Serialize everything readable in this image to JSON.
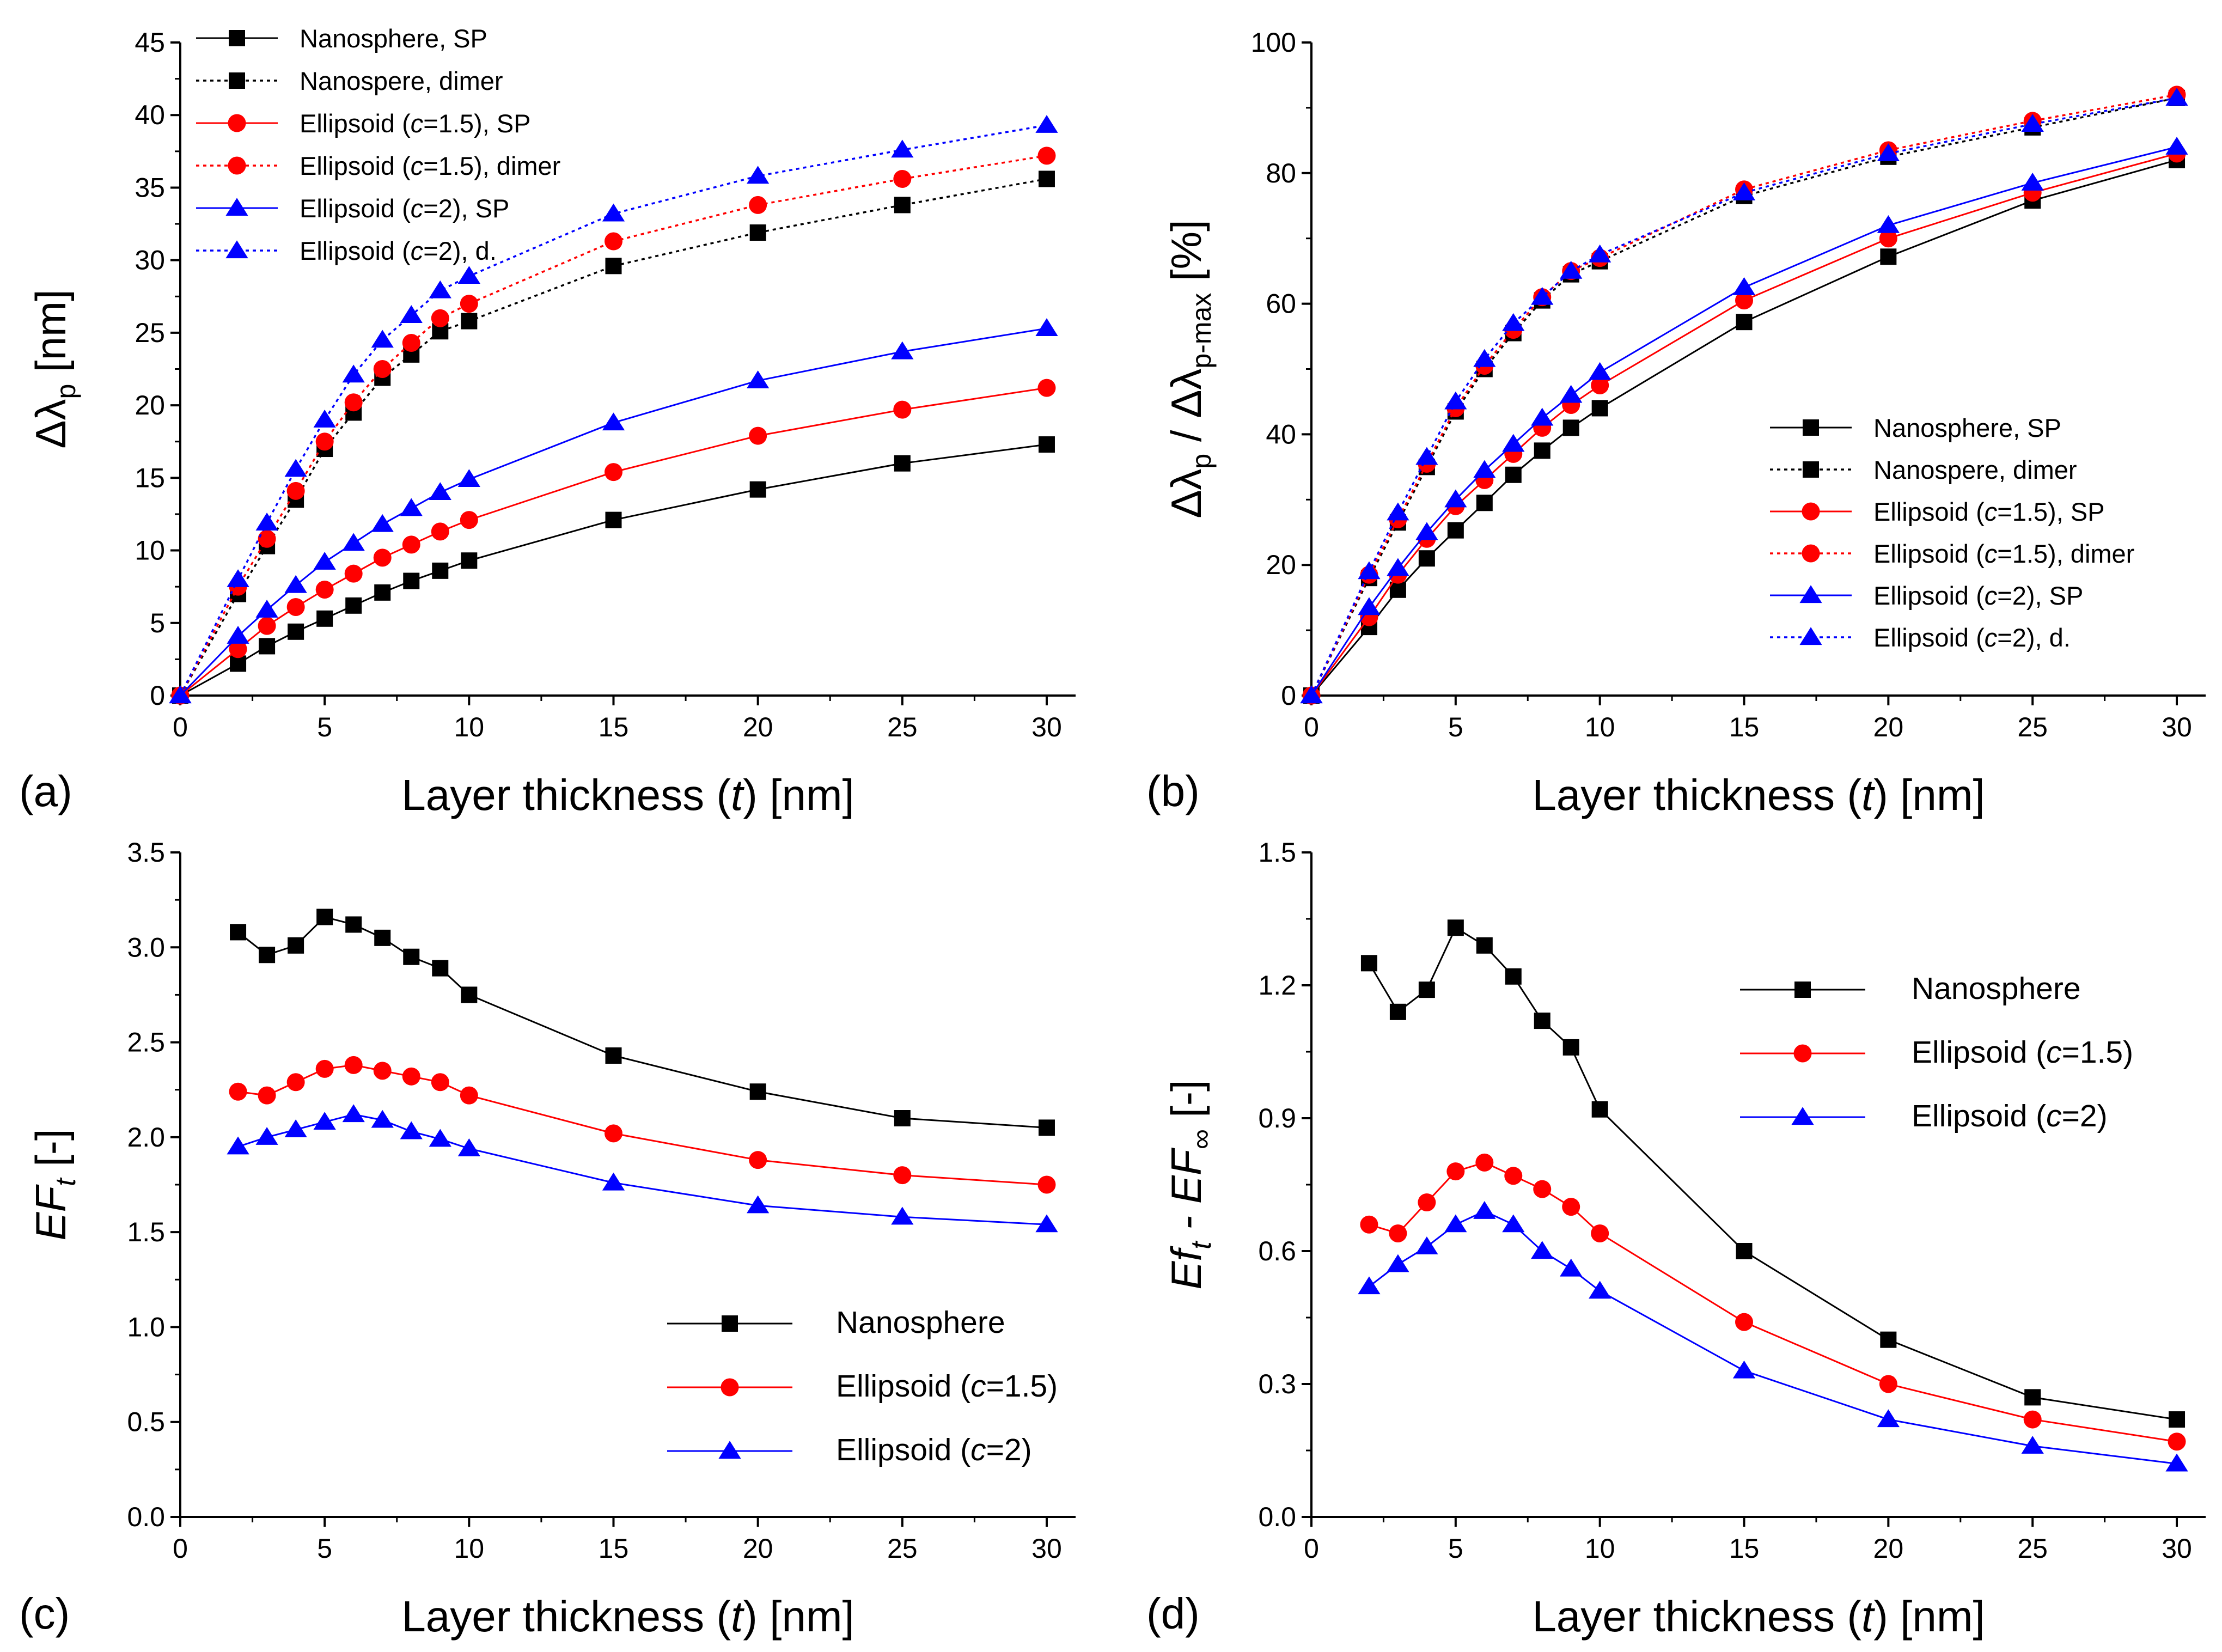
{
  "chart_data": [
    {
      "panel": "(a)",
      "type": "line",
      "xlabel_parts": [
        "Layer thickness (",
        "t",
        ") [nm]"
      ],
      "ylabel": "Δλp [nm]",
      "ylabel_parts": [
        "Δλ",
        "p",
        " [nm]"
      ],
      "xlim": [
        0,
        31
      ],
      "ylim": [
        0,
        45
      ],
      "xticks": [
        0,
        5,
        10,
        15,
        20,
        25,
        30
      ],
      "yticks": [
        0,
        5,
        10,
        15,
        20,
        25,
        30,
        35,
        40,
        45
      ],
      "legend_position": "top-left",
      "x": [
        0,
        2,
        3,
        4,
        5,
        6,
        7,
        8,
        9,
        10,
        15,
        20,
        25,
        30
      ],
      "series": [
        {
          "name": "Nanosphere, SP",
          "label_parts": [
            "Nanosphere, SP"
          ],
          "color": "#000000",
          "marker": "square",
          "dash": "solid",
          "values": [
            0,
            2.2,
            3.4,
            4.4,
            5.3,
            6.2,
            7.1,
            7.9,
            8.6,
            9.3,
            12.1,
            14.2,
            16.0,
            17.3
          ]
        },
        {
          "name": "Nanospere, dimer",
          "label_parts": [
            "Nanospere, dimer"
          ],
          "color": "#000000",
          "marker": "square",
          "dash": "dotted",
          "values": [
            0,
            7.0,
            10.3,
            13.5,
            17.0,
            19.5,
            21.9,
            23.5,
            25.1,
            25.8,
            29.6,
            31.9,
            33.8,
            35.6
          ]
        },
        {
          "name": "Ellipsoid (c=1.5), SP",
          "label_parts": [
            "Ellipsoid (",
            "c",
            "=1.5), SP"
          ],
          "color": "#ff0000",
          "marker": "circle",
          "dash": "solid",
          "values": [
            0,
            3.2,
            4.8,
            6.1,
            7.3,
            8.4,
            9.5,
            10.4,
            11.3,
            12.1,
            15.4,
            17.9,
            19.7,
            21.2
          ]
        },
        {
          "name": "Ellipsoid (c=1.5), dimer",
          "label_parts": [
            "Ellipsoid (",
            "c",
            "=1.5), dimer"
          ],
          "color": "#ff0000",
          "marker": "circle",
          "dash": "dotted",
          "values": [
            0,
            7.5,
            10.8,
            14.1,
            17.5,
            20.2,
            22.5,
            24.3,
            26.0,
            27.0,
            31.3,
            33.8,
            35.6,
            37.2
          ]
        },
        {
          "name": "Ellipsoid (c=2), SP",
          "label_parts": [
            "Ellipsoid (",
            "c",
            "=2), SP"
          ],
          "color": "#0000ff",
          "marker": "triangle",
          "dash": "solid",
          "values": [
            0,
            4.1,
            5.9,
            7.6,
            9.2,
            10.5,
            11.8,
            12.9,
            14.0,
            14.9,
            18.8,
            21.7,
            23.7,
            25.3
          ]
        },
        {
          "name": "Ellipsoid (c=2), d.",
          "label_parts": [
            "Ellipsoid (",
            "c",
            "=2), d."
          ],
          "color": "#0000ff",
          "marker": "triangle",
          "dash": "dotted",
          "values": [
            0,
            8.0,
            11.9,
            15.6,
            19.0,
            22.1,
            24.5,
            26.2,
            27.9,
            28.9,
            33.2,
            35.8,
            37.6,
            39.3
          ]
        }
      ]
    },
    {
      "panel": "(b)",
      "type": "line",
      "xlabel_parts": [
        "Layer thickness (",
        "t",
        ") [nm]"
      ],
      "ylabel": "Δλp / Δλp-max [%]",
      "ylabel_parts": [
        "Δλ",
        "p",
        " / Δλ",
        "p-max",
        " [%]"
      ],
      "xlim": [
        0,
        31
      ],
      "ylim": [
        0,
        100
      ],
      "xticks": [
        0,
        5,
        10,
        15,
        20,
        25,
        30
      ],
      "yticks": [
        0,
        20,
        40,
        60,
        80,
        100
      ],
      "legend_position": "center-right",
      "x": [
        0,
        2,
        3,
        4,
        5,
        6,
        7,
        8,
        9,
        10,
        15,
        20,
        25,
        30
      ],
      "series": [
        {
          "name": "Nanosphere, SP",
          "label_parts": [
            "Nanosphere, SP"
          ],
          "color": "#000000",
          "marker": "square",
          "dash": "solid",
          "values": [
            0,
            10.5,
            16.2,
            21.0,
            25.3,
            29.5,
            33.8,
            37.5,
            41.0,
            44.0,
            57.2,
            67.2,
            75.8,
            82.0
          ]
        },
        {
          "name": "Nanospere, dimer",
          "label_parts": [
            "Nanospere, dimer"
          ],
          "color": "#000000",
          "marker": "square",
          "dash": "dotted",
          "values": [
            0,
            18.0,
            26.5,
            35.0,
            43.5,
            50.0,
            55.5,
            60.5,
            64.5,
            66.5,
            76.5,
            82.5,
            87.0,
            91.5
          ]
        },
        {
          "name": "Ellipsoid (c=1.5), SP",
          "label_parts": [
            "Ellipsoid (",
            "c",
            "=1.5), SP"
          ],
          "color": "#ff0000",
          "marker": "circle",
          "dash": "solid",
          "values": [
            0,
            12.0,
            18.5,
            24.0,
            29.0,
            33.0,
            37.0,
            41.0,
            44.5,
            47.5,
            60.5,
            70.0,
            77.0,
            83.0
          ]
        },
        {
          "name": "Ellipsoid (c=1.5), dimer",
          "label_parts": [
            "Ellipsoid (",
            "c",
            "=1.5), dimer"
          ],
          "color": "#ff0000",
          "marker": "circle",
          "dash": "dotted",
          "values": [
            0,
            18.5,
            27.0,
            35.5,
            44.0,
            50.5,
            56.0,
            61.0,
            65.0,
            67.0,
            77.5,
            83.5,
            88.0,
            92.0
          ]
        },
        {
          "name": "Ellipsoid (c=2), SP",
          "label_parts": [
            "Ellipsoid (",
            "c",
            "=2), SP"
          ],
          "color": "#0000ff",
          "marker": "triangle",
          "dash": "solid",
          "values": [
            0,
            13.5,
            19.5,
            25.0,
            30.0,
            34.5,
            38.5,
            42.5,
            46.0,
            49.5,
            62.5,
            72.0,
            78.5,
            84.0
          ]
        },
        {
          "name": "Ellipsoid (c=2), d.",
          "label_parts": [
            "Ellipsoid (",
            "c",
            "=2), d."
          ],
          "color": "#0000ff",
          "marker": "triangle",
          "dash": "dotted",
          "values": [
            0,
            19.0,
            28.0,
            36.5,
            45.0,
            51.5,
            57.0,
            61.0,
            65.0,
            67.5,
            77.0,
            83.0,
            87.5,
            91.5
          ]
        }
      ]
    },
    {
      "panel": "(c)",
      "type": "line",
      "xlabel_parts": [
        "Layer thickness (",
        "t",
        ") [nm]"
      ],
      "ylabel": "EFt [-]",
      "ylabel_parts": [
        "EF",
        "t",
        " [-]"
      ],
      "xlim": [
        0,
        31
      ],
      "ylim": [
        0,
        3.5
      ],
      "xticks": [
        0,
        5,
        10,
        15,
        20,
        25,
        30
      ],
      "yticks": [
        "0.0",
        "0.5",
        "1.0",
        "1.5",
        "2.0",
        "2.5",
        "3.0",
        "3.5"
      ],
      "legend_position": "lower-right",
      "x": [
        2,
        3,
        4,
        5,
        6,
        7,
        8,
        9,
        10,
        15,
        20,
        25,
        30
      ],
      "series": [
        {
          "name": "Nanosphere",
          "label_parts": [
            "Nanosphere"
          ],
          "color": "#000000",
          "marker": "square",
          "dash": "solid",
          "values": [
            3.08,
            2.96,
            3.01,
            3.16,
            3.12,
            3.05,
            2.95,
            2.89,
            2.75,
            2.43,
            2.24,
            2.1,
            2.05
          ]
        },
        {
          "name": "Ellipsoid (c=1.5)",
          "label_parts": [
            "Ellipsoid (",
            "c",
            "=1.5)"
          ],
          "color": "#ff0000",
          "marker": "circle",
          "dash": "solid",
          "values": [
            2.24,
            2.22,
            2.29,
            2.36,
            2.38,
            2.35,
            2.32,
            2.29,
            2.22,
            2.02,
            1.88,
            1.8,
            1.75
          ]
        },
        {
          "name": "Ellipsoid (c=2)",
          "label_parts": [
            "Ellipsoid (",
            "c",
            "=2)"
          ],
          "color": "#0000ff",
          "marker": "triangle",
          "dash": "solid",
          "values": [
            1.95,
            2.0,
            2.04,
            2.08,
            2.12,
            2.09,
            2.03,
            1.99,
            1.94,
            1.76,
            1.64,
            1.58,
            1.54
          ]
        }
      ]
    },
    {
      "panel": "(d)",
      "type": "line",
      "xlabel_parts": [
        "Layer thickness (",
        "t",
        ") [nm]"
      ],
      "ylabel": "Eft - EF∞ [-]",
      "ylabel_parts": [
        "Ef",
        "t",
        " - EF",
        "∞",
        "  [-]"
      ],
      "xlim": [
        0,
        31
      ],
      "ylim": [
        0,
        1.5
      ],
      "xticks": [
        0,
        5,
        10,
        15,
        20,
        25,
        30
      ],
      "yticks": [
        "0.0",
        "0.3",
        "0.6",
        "0.9",
        "1.2",
        "1.5"
      ],
      "legend_position": "top-right",
      "x": [
        2,
        3,
        4,
        5,
        6,
        7,
        8,
        9,
        10,
        15,
        20,
        25,
        30
      ],
      "series": [
        {
          "name": "Nanosphere",
          "label_parts": [
            "Nanosphere"
          ],
          "color": "#000000",
          "marker": "square",
          "dash": "solid",
          "values": [
            1.25,
            1.14,
            1.19,
            1.33,
            1.29,
            1.22,
            1.12,
            1.06,
            0.92,
            0.6,
            0.4,
            0.27,
            0.22
          ]
        },
        {
          "name": "Ellipsoid (c=1.5)",
          "label_parts": [
            "Ellipsoid (",
            "c",
            "=1.5)"
          ],
          "color": "#ff0000",
          "marker": "circle",
          "dash": "solid",
          "values": [
            0.66,
            0.64,
            0.71,
            0.78,
            0.8,
            0.77,
            0.74,
            0.7,
            0.64,
            0.44,
            0.3,
            0.22,
            0.17
          ]
        },
        {
          "name": "Ellipsoid (c=2)",
          "label_parts": [
            "Ellipsoid (",
            "c",
            "=2)"
          ],
          "color": "#0000ff",
          "marker": "triangle",
          "dash": "solid",
          "values": [
            0.52,
            0.57,
            0.61,
            0.66,
            0.69,
            0.66,
            0.6,
            0.56,
            0.51,
            0.33,
            0.22,
            0.16,
            0.12
          ]
        }
      ]
    }
  ]
}
